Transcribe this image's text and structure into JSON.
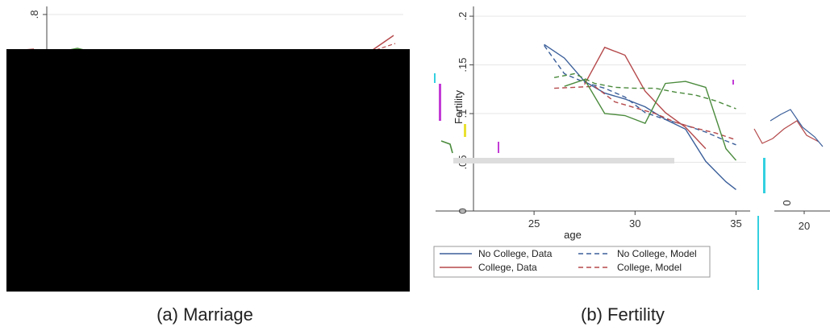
{
  "captions": {
    "a": "(a) Marriage",
    "b": "(b) Fertility"
  },
  "chart_data": [
    {
      "type": "line",
      "title": "",
      "y_ticks": [
        ".8"
      ],
      "note": "",
      "series": []
    },
    {
      "type": "line",
      "title": "",
      "xlabel": "age",
      "ylabel": "Fertility",
      "xlim": [
        22,
        35.5
      ],
      "ylim": [
        0,
        0.21
      ],
      "x_ticks": [
        25,
        30,
        35
      ],
      "y_ticks": [
        0,
        0.05,
        0.1,
        0.15,
        0.2
      ],
      "y_tick_labels": [
        "0",
        ".05",
        ".1",
        ".15",
        ".2"
      ],
      "grid": true,
      "legend_position": "bottom",
      "series": [
        {
          "name": "No College, Data",
          "style": "solid",
          "color": "#3b5f9a",
          "x": [
            25.5,
            26.5,
            27.5,
            28.5,
            29.5,
            30.5,
            31.5,
            32.5,
            33.5,
            34.5,
            35
          ],
          "y": [
            0.171,
            0.157,
            0.133,
            0.121,
            0.115,
            0.107,
            0.094,
            0.084,
            0.051,
            0.03,
            0.022
          ]
        },
        {
          "name": "No College, Model",
          "style": "dashed",
          "color": "#3b5f9a",
          "x": [
            25.5,
            26.5,
            27.5,
            28.5,
            29.5,
            30.5,
            31.5,
            32.5,
            33.5,
            34.5,
            35
          ],
          "y": [
            0.17,
            0.141,
            0.132,
            0.126,
            0.117,
            0.101,
            0.094,
            0.088,
            0.081,
            0.072,
            0.068
          ]
        },
        {
          "name": "College, Data",
          "style": "solid",
          "color": "#b5494b",
          "x": [
            27.5,
            28.5,
            29.5,
            30.5,
            31.5,
            32.5,
            33.5
          ],
          "y": [
            0.13,
            0.168,
            0.16,
            0.123,
            0.101,
            0.086,
            0.064
          ]
        },
        {
          "name": "College, Model",
          "style": "dashed",
          "color": "#b5494b",
          "x": [
            26,
            27,
            28,
            29,
            30,
            31,
            32,
            33,
            34,
            35
          ],
          "y": [
            0.126,
            0.127,
            0.128,
            0.112,
            0.106,
            0.1,
            0.091,
            0.085,
            0.08,
            0.073
          ]
        },
        {
          "name": "",
          "style": "solid",
          "color": "#4a8a3c",
          "x": [
            26.5,
            27.5,
            28.5,
            29.5,
            30.5,
            31.5,
            32.5,
            33.5,
            34.5,
            35
          ],
          "y": [
            0.128,
            0.135,
            0.1,
            0.098,
            0.09,
            0.131,
            0.133,
            0.127,
            0.064,
            0.052
          ]
        },
        {
          "name": "",
          "style": "dashed",
          "color": "#4a8a3c",
          "x": [
            26,
            27,
            28,
            29,
            30,
            31,
            32,
            33,
            34,
            35
          ],
          "y": [
            0.137,
            0.141,
            0.131,
            0.127,
            0.126,
            0.126,
            0.122,
            0.119,
            0.113,
            0.105
          ]
        }
      ],
      "legend": [
        {
          "label": "No College, Data",
          "style": "solid",
          "color": "#3b5f9a"
        },
        {
          "label": "No College, Model",
          "style": "dashed",
          "color": "#3b5f9a"
        },
        {
          "label": "College, Data",
          "style": "solid",
          "color": "#b5494b"
        },
        {
          "label": "College, Model",
          "style": "dashed",
          "color": "#b5494b"
        }
      ]
    }
  ],
  "inset": {
    "x_ticks": [
      "20"
    ],
    "y_ticks": [
      "0"
    ]
  },
  "colors": {
    "occlusion": "#000000",
    "grid": "#e6e6e6",
    "axis": "#444444",
    "artifact_cyan": "#33d0e0",
    "artifact_magenta": "#c23bd6",
    "artifact_yellow": "#e8e030",
    "artifact_gray": "#dddddd"
  }
}
